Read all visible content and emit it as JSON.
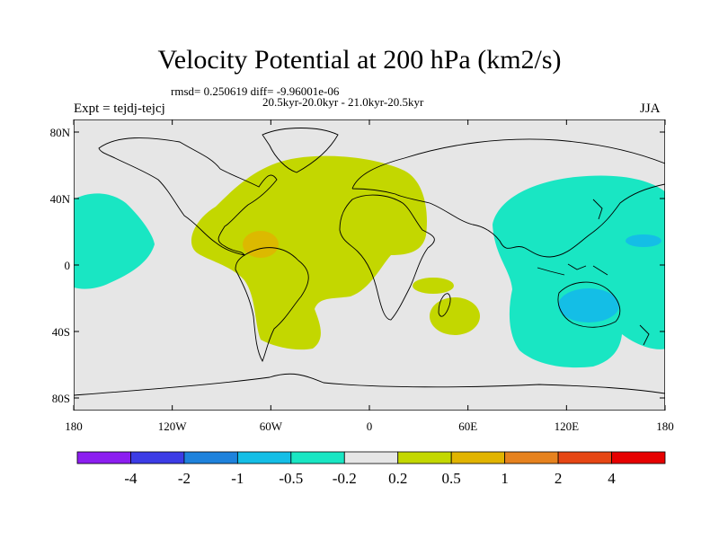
{
  "title": "Velocity Potential at 200 hPa (km2/s)",
  "stats": "rmsd= 0.250619 diff= -9.96001e-06",
  "periods": "20.5kyr-20.0kyr - 21.0kyr-20.5kyr",
  "experiment": "Expt = tejdj-tejcj",
  "season": "JJA",
  "axes": {
    "lon_ticks": [
      "180",
      "120W",
      "60W",
      "0",
      "60E",
      "120E",
      "180"
    ],
    "lat_ticks": [
      "80N",
      "40N",
      "0",
      "40S",
      "80S"
    ]
  },
  "colorbar": {
    "colors": [
      "#8c1ef0",
      "#3c3ce6",
      "#1e82dc",
      "#14bee6",
      "#19e6c3",
      "#e6e6e6",
      "#c3d700",
      "#e1b400",
      "#e6821e",
      "#e64614",
      "#e60000"
    ],
    "labels": [
      "-4",
      "-2",
      "-1",
      "-0.5",
      "-0.2",
      "0.2",
      "0.5",
      "1",
      "2",
      "4"
    ]
  },
  "colors": {
    "ocean_land_bg": "#e6e6e6",
    "positive_0_2": "#c3d700",
    "positive_1": "#e1b400",
    "negative_0_2": "#19e6c3",
    "negative_0_5": "#14bee6"
  }
}
